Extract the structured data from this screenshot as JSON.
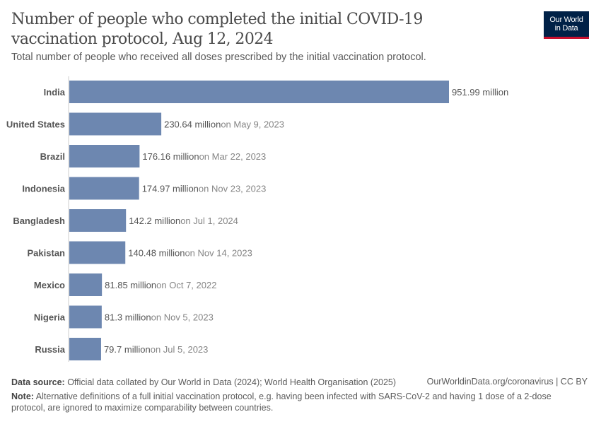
{
  "header": {
    "title": "Number of people who completed the initial COVID-19 vaccination protocol, Aug 12, 2024",
    "subtitle": "Total number of people who received all doses prescribed by the initial vaccination protocol.",
    "logo": [
      "Our World",
      "in Data"
    ]
  },
  "chart_data": {
    "type": "bar",
    "orientation": "horizontal",
    "title": "Number of people who completed the initial COVID-19 vaccination protocol, Aug 12, 2024",
    "categories": [
      "India",
      "United States",
      "Brazil",
      "Indonesia",
      "Bangladesh",
      "Pakistan",
      "Mexico",
      "Nigeria",
      "Russia"
    ],
    "values": [
      951.99,
      230.64,
      176.16,
      174.97,
      142.2,
      140.48,
      81.85,
      81.3,
      79.7
    ],
    "unit": "million",
    "value_labels": [
      "951.99 million",
      "230.64 million",
      "176.16 million",
      "174.97 million",
      "142.2 million",
      "140.48 million",
      "81.85 million",
      "81.3 million",
      "79.7 million"
    ],
    "date_labels": [
      "",
      "on May 9, 2023",
      "on Mar 22, 2023",
      "on Nov 23, 2023",
      "on Jul 1, 2024",
      "on Nov 14, 2023",
      "on Oct 7, 2022",
      "on Nov 5, 2023",
      "on Jul 5, 2023"
    ],
    "bar_color": "#6D87B0",
    "grid": false
  },
  "footer": {
    "source_label": "Data source:",
    "source_text": " Official data collated by Our World in Data (2024); World Health Organisation (2025)",
    "url": "OurWorldinData.org/coronavirus | CC BY",
    "note_label": "Note:",
    "note_text": " Alternative definitions of a full initial vaccination protocol, e.g. having been infected with SARS-CoV-2 and having 1 dose of a 2-dose protocol, are ignored to maximize comparability between countries."
  }
}
